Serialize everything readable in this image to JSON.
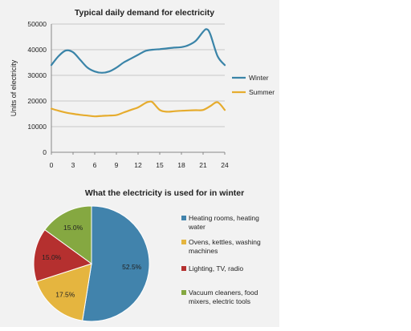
{
  "chart_data": [
    {
      "type": "line",
      "title": "Typical daily demand for electricity",
      "xlabel": "",
      "ylabel": "Units of electricity",
      "xlim": [
        0,
        24
      ],
      "ylim": [
        0,
        50000
      ],
      "xticks": [
        0,
        3,
        6,
        9,
        12,
        15,
        18,
        21,
        24
      ],
      "yticks": [
        0,
        10000,
        20000,
        30000,
        40000,
        50000
      ],
      "grid": true,
      "legend": "right",
      "series": [
        {
          "name": "Winter",
          "color": "#3a84a8",
          "x": [
            0,
            1,
            2,
            3,
            4,
            5,
            6,
            7,
            8,
            9,
            10,
            11,
            12,
            13,
            14,
            15,
            16,
            17,
            18,
            19,
            20,
            21,
            21.5,
            22,
            23,
            24
          ],
          "y": [
            34000,
            37500,
            39700,
            39000,
            36000,
            33000,
            31500,
            31000,
            31500,
            33000,
            35000,
            36500,
            38000,
            39500,
            40000,
            40200,
            40500,
            40800,
            41000,
            41800,
            43500,
            47000,
            48000,
            46000,
            37500,
            34000
          ]
        },
        {
          "name": "Summer",
          "color": "#e6ac2e",
          "x": [
            0,
            1,
            2,
            3,
            4,
            5,
            6,
            7,
            8,
            9,
            10,
            11,
            12,
            13,
            13.5,
            14,
            15,
            16,
            17,
            18,
            19,
            20,
            21,
            22,
            23,
            24
          ],
          "y": [
            17000,
            16200,
            15500,
            15000,
            14600,
            14300,
            14000,
            14200,
            14300,
            14500,
            15500,
            16500,
            17500,
            19200,
            19700,
            19500,
            16500,
            15800,
            16000,
            16200,
            16300,
            16400,
            16500,
            18000,
            19500,
            16500
          ]
        }
      ]
    },
    {
      "type": "pie",
      "title": "What the electricity is used for in winter",
      "slices": [
        {
          "label": "Heating rooms, heating water",
          "value": 52.5,
          "text": "52.5%",
          "color": "#4183ac"
        },
        {
          "label": "Ovens, kettles, washing machines",
          "value": 17.5,
          "text": "17.5%",
          "color": "#e5b53f"
        },
        {
          "label": "Lighting, TV, radio",
          "value": 15.0,
          "text": "15.0%",
          "color": "#b5302f"
        },
        {
          "label": "Vacuum cleaners, food mixers, electric tools",
          "value": 15.0,
          "text": "15.0%",
          "color": "#85a841"
        }
      ],
      "legend": "right"
    }
  ],
  "legend_lines": [
    [
      "Heating rooms, heating",
      "water"
    ],
    [
      "Ovens, kettles, washing",
      "machines"
    ],
    [
      "Lighting, TV, radio"
    ],
    [
      "Vacuum cleaners, food",
      "mixers, electric tools"
    ]
  ]
}
